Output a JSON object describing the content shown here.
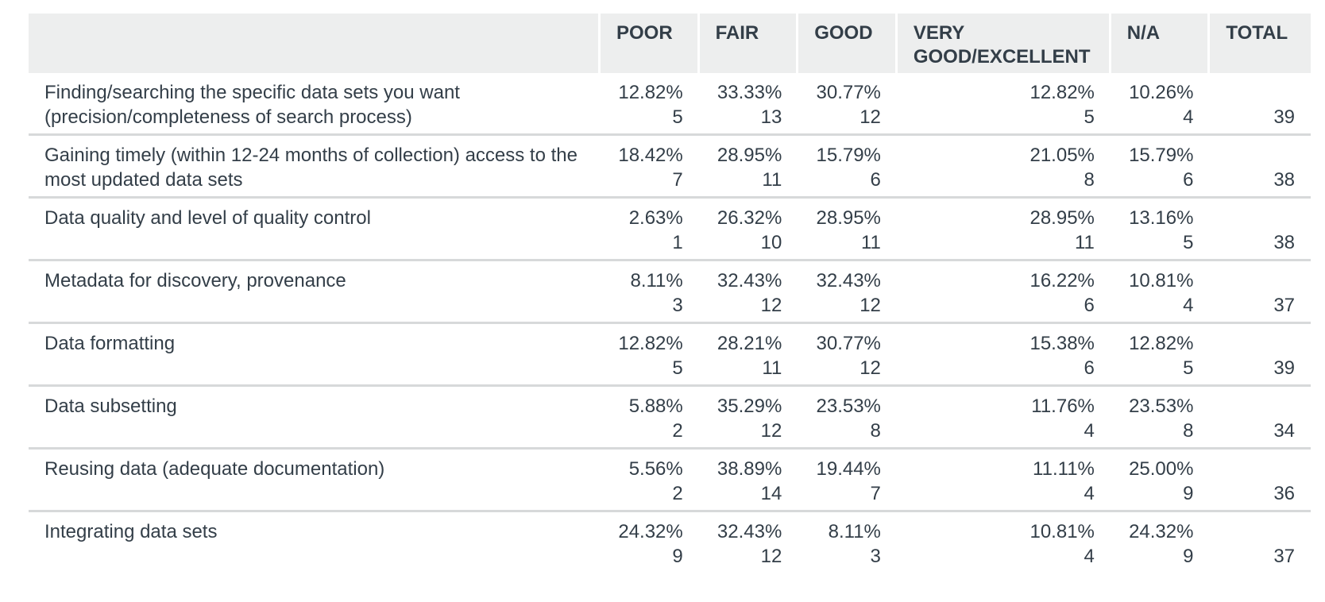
{
  "headers": [
    "",
    "POOR",
    "FAIR",
    "GOOD",
    "VERY GOOD/EXCELLENT",
    "N/A",
    "TOTAL"
  ],
  "rows": [
    {
      "label": "Finding/searching the specific data sets you want (precision/completeness of search process)",
      "poor": {
        "pct": "12.82%",
        "n": "5"
      },
      "fair": {
        "pct": "33.33%",
        "n": "13"
      },
      "good": {
        "pct": "30.77%",
        "n": "12"
      },
      "very_good": {
        "pct": "12.82%",
        "n": "5"
      },
      "na": {
        "pct": "10.26%",
        "n": "4"
      },
      "total": "39"
    },
    {
      "label": "Gaining timely (within 12-24 months of collection) access to the most updated data sets",
      "poor": {
        "pct": "18.42%",
        "n": "7"
      },
      "fair": {
        "pct": "28.95%",
        "n": "11"
      },
      "good": {
        "pct": "15.79%",
        "n": "6"
      },
      "very_good": {
        "pct": "21.05%",
        "n": "8"
      },
      "na": {
        "pct": "15.79%",
        "n": "6"
      },
      "total": "38"
    },
    {
      "label": "Data quality and level of quality control",
      "poor": {
        "pct": "2.63%",
        "n": "1"
      },
      "fair": {
        "pct": "26.32%",
        "n": "10"
      },
      "good": {
        "pct": "28.95%",
        "n": "11"
      },
      "very_good": {
        "pct": "28.95%",
        "n": "11"
      },
      "na": {
        "pct": "13.16%",
        "n": "5"
      },
      "total": "38"
    },
    {
      "label": "Metadata for discovery, provenance",
      "poor": {
        "pct": "8.11%",
        "n": "3"
      },
      "fair": {
        "pct": "32.43%",
        "n": "12"
      },
      "good": {
        "pct": "32.43%",
        "n": "12"
      },
      "very_good": {
        "pct": "16.22%",
        "n": "6"
      },
      "na": {
        "pct": "10.81%",
        "n": "4"
      },
      "total": "37"
    },
    {
      "label": "Data formatting",
      "poor": {
        "pct": "12.82%",
        "n": "5"
      },
      "fair": {
        "pct": "28.21%",
        "n": "11"
      },
      "good": {
        "pct": "30.77%",
        "n": "12"
      },
      "very_good": {
        "pct": "15.38%",
        "n": "6"
      },
      "na": {
        "pct": "12.82%",
        "n": "5"
      },
      "total": "39"
    },
    {
      "label": "Data subsetting",
      "poor": {
        "pct": "5.88%",
        "n": "2"
      },
      "fair": {
        "pct": "35.29%",
        "n": "12"
      },
      "good": {
        "pct": "23.53%",
        "n": "8"
      },
      "very_good": {
        "pct": "11.76%",
        "n": "4"
      },
      "na": {
        "pct": "23.53%",
        "n": "8"
      },
      "total": "34"
    },
    {
      "label": "Reusing data (adequate documentation)",
      "poor": {
        "pct": "5.56%",
        "n": "2"
      },
      "fair": {
        "pct": "38.89%",
        "n": "14"
      },
      "good": {
        "pct": "19.44%",
        "n": "7"
      },
      "very_good": {
        "pct": "11.11%",
        "n": "4"
      },
      "na": {
        "pct": "25.00%",
        "n": "9"
      },
      "total": "36"
    },
    {
      "label": "Integrating data sets",
      "poor": {
        "pct": "24.32%",
        "n": "9"
      },
      "fair": {
        "pct": "32.43%",
        "n": "12"
      },
      "good": {
        "pct": "8.11%",
        "n": "3"
      },
      "very_good": {
        "pct": "10.81%",
        "n": "4"
      },
      "na": {
        "pct": "24.32%",
        "n": "9"
      },
      "total": "37"
    }
  ],
  "colors": {
    "header_bg": "#edeeee",
    "text": "#333e48",
    "row_divider": "#d7d9da"
  }
}
